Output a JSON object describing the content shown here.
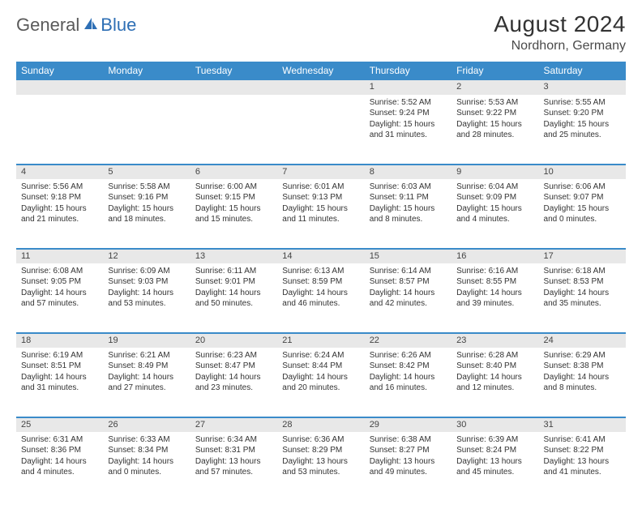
{
  "logo": {
    "text1": "General",
    "text2": "Blue"
  },
  "title": "August 2024",
  "location": "Nordhorn, Germany",
  "colors": {
    "headerBg": "#3a8bc9",
    "dayBg": "#e8e8e8",
    "accent": "#2e6fb5",
    "text": "#333333"
  },
  "dayHeaders": [
    "Sunday",
    "Monday",
    "Tuesday",
    "Wednesday",
    "Thursday",
    "Friday",
    "Saturday"
  ],
  "weeks": [
    {
      "nums": [
        "",
        "",
        "",
        "",
        "1",
        "2",
        "3"
      ],
      "cells": [
        null,
        null,
        null,
        null,
        {
          "sunrise": "5:52 AM",
          "sunset": "9:24 PM",
          "daylight": "15 hours and 31 minutes."
        },
        {
          "sunrise": "5:53 AM",
          "sunset": "9:22 PM",
          "daylight": "15 hours and 28 minutes."
        },
        {
          "sunrise": "5:55 AM",
          "sunset": "9:20 PM",
          "daylight": "15 hours and 25 minutes."
        }
      ]
    },
    {
      "nums": [
        "4",
        "5",
        "6",
        "7",
        "8",
        "9",
        "10"
      ],
      "cells": [
        {
          "sunrise": "5:56 AM",
          "sunset": "9:18 PM",
          "daylight": "15 hours and 21 minutes."
        },
        {
          "sunrise": "5:58 AM",
          "sunset": "9:16 PM",
          "daylight": "15 hours and 18 minutes."
        },
        {
          "sunrise": "6:00 AM",
          "sunset": "9:15 PM",
          "daylight": "15 hours and 15 minutes."
        },
        {
          "sunrise": "6:01 AM",
          "sunset": "9:13 PM",
          "daylight": "15 hours and 11 minutes."
        },
        {
          "sunrise": "6:03 AM",
          "sunset": "9:11 PM",
          "daylight": "15 hours and 8 minutes."
        },
        {
          "sunrise": "6:04 AM",
          "sunset": "9:09 PM",
          "daylight": "15 hours and 4 minutes."
        },
        {
          "sunrise": "6:06 AM",
          "sunset": "9:07 PM",
          "daylight": "15 hours and 0 minutes."
        }
      ]
    },
    {
      "nums": [
        "11",
        "12",
        "13",
        "14",
        "15",
        "16",
        "17"
      ],
      "cells": [
        {
          "sunrise": "6:08 AM",
          "sunset": "9:05 PM",
          "daylight": "14 hours and 57 minutes."
        },
        {
          "sunrise": "6:09 AM",
          "sunset": "9:03 PM",
          "daylight": "14 hours and 53 minutes."
        },
        {
          "sunrise": "6:11 AM",
          "sunset": "9:01 PM",
          "daylight": "14 hours and 50 minutes."
        },
        {
          "sunrise": "6:13 AM",
          "sunset": "8:59 PM",
          "daylight": "14 hours and 46 minutes."
        },
        {
          "sunrise": "6:14 AM",
          "sunset": "8:57 PM",
          "daylight": "14 hours and 42 minutes."
        },
        {
          "sunrise": "6:16 AM",
          "sunset": "8:55 PM",
          "daylight": "14 hours and 39 minutes."
        },
        {
          "sunrise": "6:18 AM",
          "sunset": "8:53 PM",
          "daylight": "14 hours and 35 minutes."
        }
      ]
    },
    {
      "nums": [
        "18",
        "19",
        "20",
        "21",
        "22",
        "23",
        "24"
      ],
      "cells": [
        {
          "sunrise": "6:19 AM",
          "sunset": "8:51 PM",
          "daylight": "14 hours and 31 minutes."
        },
        {
          "sunrise": "6:21 AM",
          "sunset": "8:49 PM",
          "daylight": "14 hours and 27 minutes."
        },
        {
          "sunrise": "6:23 AM",
          "sunset": "8:47 PM",
          "daylight": "14 hours and 23 minutes."
        },
        {
          "sunrise": "6:24 AM",
          "sunset": "8:44 PM",
          "daylight": "14 hours and 20 minutes."
        },
        {
          "sunrise": "6:26 AM",
          "sunset": "8:42 PM",
          "daylight": "14 hours and 16 minutes."
        },
        {
          "sunrise": "6:28 AM",
          "sunset": "8:40 PM",
          "daylight": "14 hours and 12 minutes."
        },
        {
          "sunrise": "6:29 AM",
          "sunset": "8:38 PM",
          "daylight": "14 hours and 8 minutes."
        }
      ]
    },
    {
      "nums": [
        "25",
        "26",
        "27",
        "28",
        "29",
        "30",
        "31"
      ],
      "cells": [
        {
          "sunrise": "6:31 AM",
          "sunset": "8:36 PM",
          "daylight": "14 hours and 4 minutes."
        },
        {
          "sunrise": "6:33 AM",
          "sunset": "8:34 PM",
          "daylight": "14 hours and 0 minutes."
        },
        {
          "sunrise": "6:34 AM",
          "sunset": "8:31 PM",
          "daylight": "13 hours and 57 minutes."
        },
        {
          "sunrise": "6:36 AM",
          "sunset": "8:29 PM",
          "daylight": "13 hours and 53 minutes."
        },
        {
          "sunrise": "6:38 AM",
          "sunset": "8:27 PM",
          "daylight": "13 hours and 49 minutes."
        },
        {
          "sunrise": "6:39 AM",
          "sunset": "8:24 PM",
          "daylight": "13 hours and 45 minutes."
        },
        {
          "sunrise": "6:41 AM",
          "sunset": "8:22 PM",
          "daylight": "13 hours and 41 minutes."
        }
      ]
    }
  ]
}
